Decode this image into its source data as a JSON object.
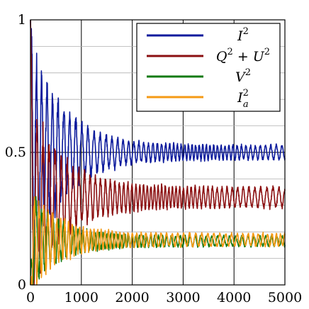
{
  "chart_data": {
    "type": "line",
    "title": "",
    "xlabel": "",
    "ylabel": "",
    "xlim": [
      0,
      5000
    ],
    "ylim": [
      0,
      1
    ],
    "grid": true,
    "legend_position": "top-right",
    "x_ticks": [
      0,
      1000,
      2000,
      3000,
      4000,
      5000
    ],
    "x_tick_labels": [
      "0",
      "1000",
      "2000",
      "3000",
      "4000",
      "5000"
    ],
    "y_ticks": [
      0,
      0.5,
      1
    ],
    "y_tick_labels": [
      "0",
      "0.5",
      "1"
    ],
    "series": [
      {
        "name": "I^2",
        "label_base": "I",
        "label_sup": "2",
        "color": "#0b1a9c",
        "start": 1.0,
        "mean": 0.5,
        "amp_early": 0.38,
        "amp_late": 0.025,
        "decay_len": 650
      },
      {
        "name": "Q^2 + U^2",
        "label_base": "Q",
        "label_sup": "2",
        "label_mid": " + U",
        "label_sup2": "2",
        "color": "#8b0f10",
        "start": 1.0,
        "mean": 0.33,
        "amp_early": 0.32,
        "amp_late": 0.035,
        "decay_len": 650
      },
      {
        "name": "V^2",
        "label_base": "V",
        "label_sup": "2",
        "color": "#137a13",
        "start": 0.0,
        "mean": 0.165,
        "amp_early": 0.16,
        "amp_late": 0.018,
        "decay_len": 550
      },
      {
        "name": "I_a^2",
        "label_base": "I",
        "label_sup": "2",
        "label_sub": "a",
        "color": "#f59a15",
        "start": 0.0,
        "mean": 0.17,
        "amp_early": 0.17,
        "amp_late": 0.022,
        "decay_len": 550
      }
    ]
  }
}
